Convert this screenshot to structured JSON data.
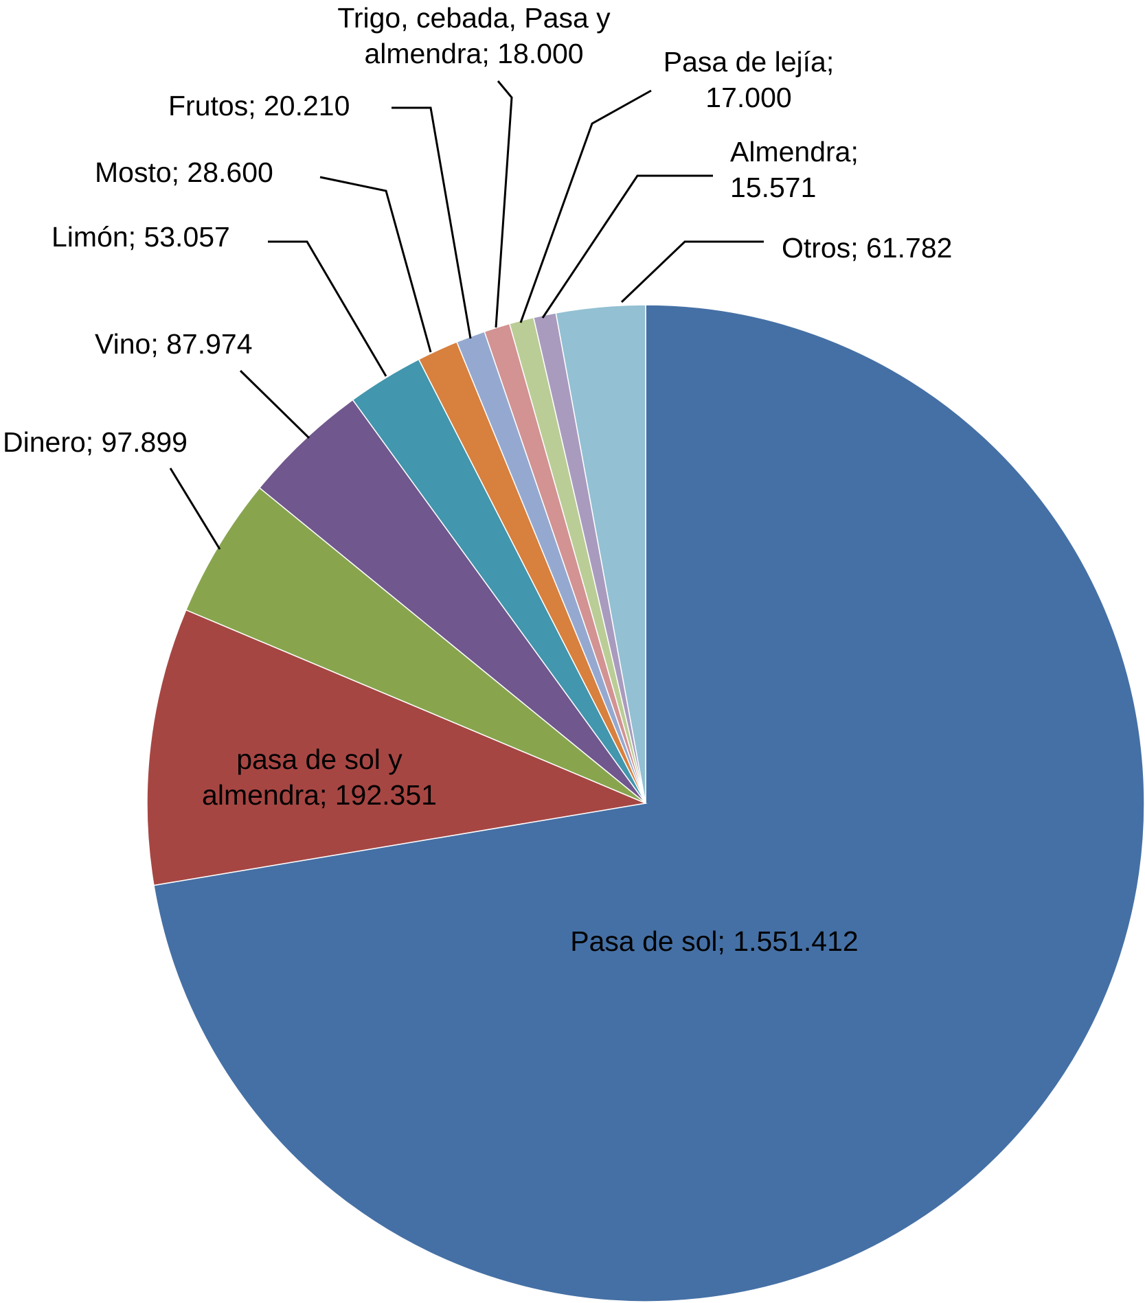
{
  "chart_data": {
    "type": "pie",
    "title": "",
    "start": "12 o'clock, clockwise",
    "slices": [
      {
        "label": "Pasa de sol; 1.551.412",
        "name": "Pasa de sol",
        "value": 1551412,
        "color": "#4570A5"
      },
      {
        "label": "pasa de sol y almendra; 192.351",
        "name": "pasa de sol y almendra",
        "value": 192351,
        "color": "#A64643"
      },
      {
        "label": "Dinero; 97.899",
        "name": "Dinero",
        "value": 97899,
        "color": "#88A54E"
      },
      {
        "label": "Vino; 87.974",
        "name": "Vino",
        "value": 87974,
        "color": "#70578D"
      },
      {
        "label": "Limón; 53.057",
        "name": "Limón",
        "value": 53057,
        "color": "#4296AD"
      },
      {
        "label": "Mosto; 28.600",
        "name": "Mosto",
        "value": 28600,
        "color": "#D8803D"
      },
      {
        "label": "Frutos; 20.210",
        "name": "Frutos",
        "value": 20210,
        "color": "#95A9D0"
      },
      {
        "label": "Trigo, cebada, Pasa y almendra; 18.000",
        "name": "Trigo, cebada, Pasa y almendra",
        "value": 18000,
        "color": "#D29392"
      },
      {
        "label": "Pasa de lejía; 17.000",
        "name": "Pasa de lejía",
        "value": 17000,
        "color": "#BACD96"
      },
      {
        "label": "Almendra; 15.571",
        "name": "Almendra",
        "value": 15571,
        "color": "#A99BBE"
      },
      {
        "label": "Otros; 61.782",
        "name": "Otros",
        "value": 61782,
        "color": "#93C0D3"
      }
    ]
  }
}
